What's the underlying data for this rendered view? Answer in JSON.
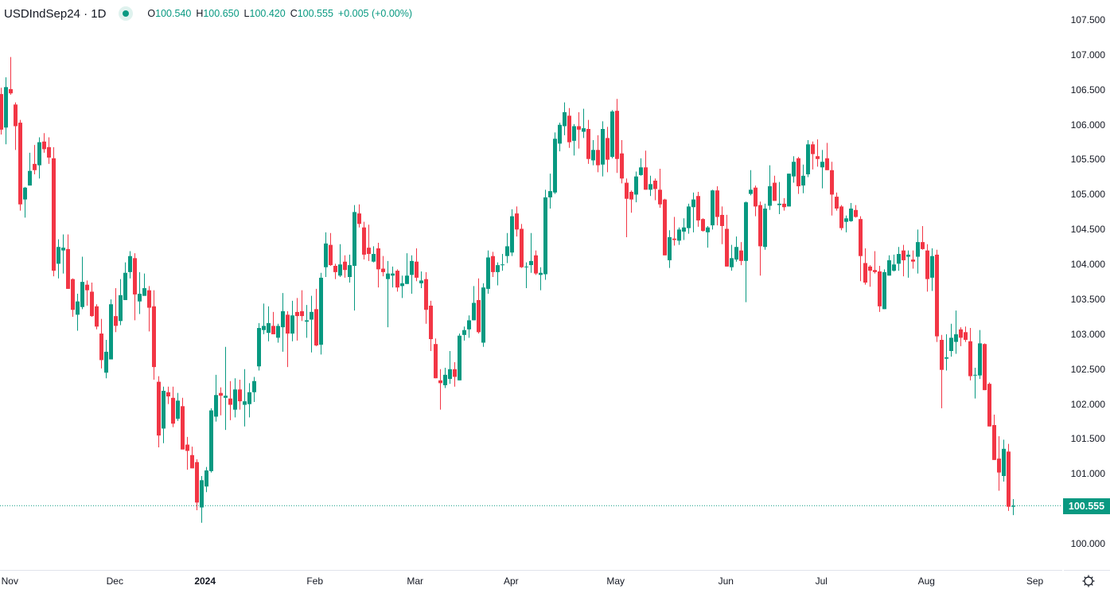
{
  "header": {
    "symbol": "USDIndSep24 · 1D",
    "open_label": "O",
    "open": "100.540",
    "high_label": "H",
    "high": "100.650",
    "low_label": "L",
    "low": "100.420",
    "close_label": "C",
    "close": "100.555",
    "change": "+0.005 (+0.00%)"
  },
  "last_price_label": "100.555",
  "colors": {
    "up": "#089981",
    "down": "#F23645",
    "last_price_line": "#089981"
  },
  "icons": {
    "status": "market-status-dot-icon",
    "settings": "gear-icon"
  },
  "chart_data": {
    "type": "candlestick",
    "title": "",
    "symbol": "USDIndSep24",
    "interval": "1D",
    "ylim": [
      99.8,
      107.6
    ],
    "grid": false,
    "y_ticks": [
      "107.500",
      "107.000",
      "106.500",
      "106.000",
      "105.500",
      "105.000",
      "104.500",
      "104.000",
      "103.500",
      "103.000",
      "102.500",
      "102.000",
      "101.500",
      "101.000",
      "100.000"
    ],
    "x_ticks": [
      {
        "label": "Nov",
        "bar": 1.8
      },
      {
        "label": "Dec",
        "bar": 23.8
      },
      {
        "label": "2024",
        "bar": 42.7,
        "bold": true
      },
      {
        "label": "Feb",
        "bar": 65.7
      },
      {
        "label": "Mar",
        "bar": 86.7
      },
      {
        "label": "Apr",
        "bar": 106.8
      },
      {
        "label": "May",
        "bar": 128.7
      },
      {
        "label": "Jun",
        "bar": 151.8
      },
      {
        "label": "Jul",
        "bar": 171.8
      },
      {
        "label": "Aug",
        "bar": 193.8
      },
      {
        "label": "Sep",
        "bar": 216.5
      }
    ],
    "last_price": 100.555,
    "ohlc_fields": [
      "open",
      "high",
      "low",
      "close"
    ],
    "candles": [
      [
        106.45,
        106.54,
        105.87,
        105.94
      ],
      [
        105.97,
        106.69,
        105.73,
        106.55
      ],
      [
        106.52,
        106.98,
        106.44,
        106.46
      ],
      [
        106.3,
        106.33,
        105.65,
        105.99
      ],
      [
        106.04,
        106.08,
        104.78,
        104.87
      ],
      [
        104.94,
        105.12,
        104.68,
        105.11
      ],
      [
        105.14,
        105.61,
        105.14,
        105.35
      ],
      [
        105.45,
        105.72,
        105.3,
        105.36
      ],
      [
        105.43,
        105.83,
        105.24,
        105.76
      ],
      [
        105.77,
        105.89,
        105.61,
        105.66
      ],
      [
        105.69,
        105.83,
        105.45,
        105.54
      ],
      [
        105.53,
        105.69,
        103.84,
        103.92
      ],
      [
        104.02,
        104.37,
        103.81,
        104.26
      ],
      [
        104.21,
        104.44,
        103.88,
        104.25
      ],
      [
        104.23,
        104.44,
        103.66,
        103.66
      ],
      [
        103.8,
        103.81,
        103.26,
        103.36
      ],
      [
        103.29,
        103.59,
        103.06,
        103.48
      ],
      [
        103.4,
        104.12,
        103.37,
        103.76
      ],
      [
        103.72,
        103.78,
        103.42,
        103.64
      ],
      [
        103.62,
        103.75,
        103.26,
        103.27
      ],
      [
        103.41,
        103.44,
        103.08,
        103.12
      ],
      [
        103.02,
        103.23,
        102.52,
        102.64
      ],
      [
        102.46,
        102.93,
        102.38,
        102.76
      ],
      [
        102.65,
        103.51,
        102.65,
        103.44
      ],
      [
        103.27,
        103.67,
        103.04,
        103.13
      ],
      [
        103.2,
        103.8,
        103.14,
        103.57
      ],
      [
        103.5,
        104.04,
        103.5,
        103.89
      ],
      [
        103.9,
        104.2,
        103.81,
        104.13
      ],
      [
        104.1,
        104.17,
        103.21,
        103.58
      ],
      [
        103.48,
        103.9,
        103.3,
        103.59
      ],
      [
        103.56,
        103.88,
        103.56,
        103.67
      ],
      [
        103.64,
        103.7,
        103.05,
        103.39
      ],
      [
        103.41,
        103.64,
        102.36,
        102.54
      ],
      [
        102.33,
        102.41,
        101.39,
        101.56
      ],
      [
        101.66,
        102.26,
        101.45,
        102.2
      ],
      [
        102.18,
        102.26,
        102.01,
        102.12
      ],
      [
        102.1,
        102.26,
        101.68,
        101.73
      ],
      [
        101.8,
        102.17,
        101.77,
        102.06
      ],
      [
        101.98,
        102.1,
        101.36,
        101.36
      ],
      [
        101.43,
        101.54,
        101.07,
        101.34
      ],
      [
        101.28,
        101.4,
        101.09,
        101.09
      ],
      [
        101.18,
        101.22,
        100.49,
        100.6
      ],
      [
        100.53,
        100.98,
        100.31,
        100.92
      ],
      [
        100.83,
        101.11,
        100.75,
        101.06
      ],
      [
        101.05,
        101.95,
        101.03,
        101.92
      ],
      [
        101.83,
        102.43,
        101.76,
        102.14
      ],
      [
        102.17,
        102.25,
        101.85,
        102.13
      ],
      [
        102.1,
        102.83,
        101.64,
        102.13
      ],
      [
        102.09,
        102.34,
        101.78,
        102.0
      ],
      [
        101.93,
        102.38,
        101.82,
        102.22
      ],
      [
        102.22,
        102.36,
        101.93,
        102.05
      ],
      [
        102.0,
        102.51,
        101.69,
        102.05
      ],
      [
        102.01,
        102.31,
        101.82,
        102.18
      ],
      [
        102.18,
        102.4,
        102.04,
        102.34
      ],
      [
        102.55,
        103.17,
        102.49,
        103.1
      ],
      [
        103.07,
        103.45,
        103.01,
        103.13
      ],
      [
        103.03,
        103.41,
        102.91,
        103.17
      ],
      [
        103.13,
        103.33,
        103.01,
        103.01
      ],
      [
        102.96,
        103.16,
        102.89,
        103.13
      ],
      [
        103.11,
        103.6,
        102.76,
        103.34
      ],
      [
        103.29,
        103.34,
        102.54,
        103.02
      ],
      [
        103.02,
        103.49,
        102.91,
        103.28
      ],
      [
        103.33,
        103.53,
        102.92,
        103.27
      ],
      [
        103.34,
        103.64,
        103.2,
        103.27
      ],
      [
        103.19,
        103.43,
        102.96,
        103.21
      ],
      [
        103.22,
        103.56,
        102.75,
        103.33
      ],
      [
        103.37,
        103.66,
        102.84,
        102.85
      ],
      [
        102.86,
        103.89,
        102.72,
        103.82
      ],
      [
        103.97,
        104.47,
        103.83,
        104.31
      ],
      [
        104.29,
        104.46,
        103.99,
        104.0
      ],
      [
        103.99,
        104.02,
        103.8,
        103.9
      ],
      [
        103.85,
        104.3,
        103.83,
        104.01
      ],
      [
        104.05,
        104.14,
        103.82,
        103.93
      ],
      [
        103.83,
        104.15,
        103.75,
        104.0
      ],
      [
        103.99,
        104.86,
        103.35,
        104.76
      ],
      [
        104.74,
        104.87,
        104.54,
        104.59
      ],
      [
        104.54,
        104.62,
        104.08,
        104.15
      ],
      [
        104.25,
        104.58,
        104.06,
        104.16
      ],
      [
        104.05,
        104.27,
        104.04,
        104.16
      ],
      [
        104.24,
        104.32,
        103.68,
        103.94
      ],
      [
        103.95,
        104.13,
        103.84,
        103.9
      ],
      [
        103.8,
        104.06,
        103.11,
        103.88
      ],
      [
        103.85,
        103.98,
        103.68,
        103.88
      ],
      [
        103.92,
        103.94,
        103.62,
        103.68
      ],
      [
        103.7,
        103.85,
        103.53,
        103.74
      ],
      [
        103.73,
        104.17,
        103.73,
        103.85
      ],
      [
        103.86,
        104.14,
        103.59,
        104.06
      ],
      [
        104.05,
        104.24,
        103.77,
        103.82
      ],
      [
        103.74,
        103.91,
        103.67,
        103.78
      ],
      [
        103.8,
        103.9,
        103.16,
        103.36
      ],
      [
        103.42,
        103.49,
        102.77,
        102.94
      ],
      [
        102.87,
        102.95,
        102.38,
        102.38
      ],
      [
        102.35,
        102.51,
        101.93,
        102.31
      ],
      [
        102.28,
        102.53,
        102.24,
        102.43
      ],
      [
        102.37,
        102.77,
        102.3,
        102.51
      ],
      [
        102.51,
        102.61,
        102.26,
        102.4
      ],
      [
        102.35,
        103.02,
        102.35,
        102.99
      ],
      [
        103.0,
        103.12,
        102.92,
        103.07
      ],
      [
        103.08,
        103.28,
        102.96,
        103.21
      ],
      [
        103.21,
        103.7,
        103.21,
        103.46
      ],
      [
        103.5,
        103.81,
        103.02,
        103.04
      ],
      [
        102.89,
        103.74,
        102.83,
        103.68
      ],
      [
        103.66,
        104.21,
        103.59,
        104.11
      ],
      [
        104.13,
        104.19,
        103.83,
        103.9
      ],
      [
        103.9,
        104.04,
        103.71,
        104.0
      ],
      [
        104.0,
        104.16,
        103.92,
        104.01
      ],
      [
        104.13,
        104.46,
        104.03,
        104.27
      ],
      [
        104.18,
        104.8,
        104.13,
        104.7
      ],
      [
        104.74,
        104.84,
        104.41,
        104.51
      ],
      [
        104.52,
        104.59,
        103.96,
        103.97
      ],
      [
        103.97,
        104.04,
        103.67,
        103.98
      ],
      [
        104.0,
        104.46,
        103.89,
        104.06
      ],
      [
        104.14,
        104.21,
        103.86,
        103.88
      ],
      [
        103.86,
        103.97,
        103.64,
        103.89
      ],
      [
        103.87,
        105.08,
        103.79,
        104.97
      ],
      [
        104.97,
        105.31,
        104.81,
        105.06
      ],
      [
        105.04,
        105.9,
        105.02,
        105.81
      ],
      [
        105.74,
        106.04,
        105.63,
        106.01
      ],
      [
        105.99,
        106.33,
        105.86,
        106.19
      ],
      [
        106.14,
        106.25,
        105.68,
        105.76
      ],
      [
        105.78,
        106.02,
        105.57,
        105.99
      ],
      [
        105.99,
        106.19,
        105.67,
        105.94
      ],
      [
        105.91,
        106.24,
        105.82,
        105.96
      ],
      [
        105.95,
        106.08,
        105.45,
        105.52
      ],
      [
        105.5,
        105.79,
        105.43,
        105.65
      ],
      [
        105.65,
        105.86,
        105.33,
        105.43
      ],
      [
        105.44,
        106.06,
        105.27,
        105.95
      ],
      [
        105.82,
        105.98,
        105.33,
        105.51
      ],
      [
        105.55,
        106.22,
        105.53,
        106.2
      ],
      [
        106.21,
        106.38,
        105.32,
        105.52
      ],
      [
        105.6,
        105.79,
        105.17,
        105.24
      ],
      [
        105.18,
        105.24,
        104.4,
        104.95
      ],
      [
        105.05,
        105.07,
        104.75,
        104.94
      ],
      [
        105.01,
        105.34,
        104.9,
        105.27
      ],
      [
        105.29,
        105.53,
        105.28,
        105.4
      ],
      [
        105.4,
        105.64,
        105.08,
        105.08
      ],
      [
        105.08,
        105.28,
        104.99,
        105.16
      ],
      [
        105.21,
        105.24,
        104.93,
        105.09
      ],
      [
        105.08,
        105.38,
        104.82,
        104.87
      ],
      [
        104.94,
        104.95,
        104.14,
        104.14
      ],
      [
        104.07,
        104.5,
        103.96,
        104.4
      ],
      [
        104.38,
        104.69,
        104.28,
        104.36
      ],
      [
        104.35,
        104.54,
        104.29,
        104.51
      ],
      [
        104.48,
        104.67,
        104.36,
        104.54
      ],
      [
        104.53,
        104.88,
        104.45,
        104.84
      ],
      [
        104.83,
        105.04,
        104.47,
        104.94
      ],
      [
        104.99,
        105.05,
        104.55,
        104.64
      ],
      [
        104.66,
        104.67,
        104.48,
        104.49
      ],
      [
        104.47,
        104.56,
        104.25,
        104.54
      ],
      [
        104.57,
        105.08,
        104.51,
        105.07
      ],
      [
        105.07,
        105.13,
        104.57,
        104.69
      ],
      [
        104.72,
        104.84,
        104.3,
        104.56
      ],
      [
        104.52,
        104.72,
        103.98,
        103.98
      ],
      [
        103.97,
        104.29,
        103.92,
        104.1
      ],
      [
        104.08,
        104.41,
        104.05,
        104.26
      ],
      [
        104.21,
        104.33,
        104.0,
        104.06
      ],
      [
        104.06,
        104.91,
        103.47,
        104.9
      ],
      [
        105.02,
        105.36,
        105.0,
        105.08
      ],
      [
        105.11,
        105.14,
        104.7,
        104.84
      ],
      [
        104.86,
        104.91,
        103.85,
        104.27
      ],
      [
        104.26,
        104.88,
        104.22,
        104.81
      ],
      [
        104.85,
        105.43,
        104.79,
        105.13
      ],
      [
        105.18,
        105.28,
        104.92,
        104.92
      ],
      [
        104.86,
        105.19,
        104.73,
        104.88
      ],
      [
        104.88,
        104.96,
        104.78,
        104.83
      ],
      [
        104.84,
        105.31,
        104.84,
        105.31
      ],
      [
        105.27,
        105.56,
        105.18,
        105.48
      ],
      [
        105.53,
        105.55,
        105.02,
        105.13
      ],
      [
        105.14,
        105.44,
        105.03,
        105.28
      ],
      [
        105.3,
        105.79,
        105.26,
        105.73
      ],
      [
        105.73,
        105.77,
        105.37,
        105.59
      ],
      [
        105.56,
        105.8,
        105.41,
        105.52
      ],
      [
        105.4,
        105.65,
        105.1,
        105.48
      ],
      [
        105.53,
        105.75,
        105.36,
        105.36
      ],
      [
        105.36,
        105.48,
        104.71,
        105.01
      ],
      [
        104.98,
        105.04,
        104.78,
        104.81
      ],
      [
        104.84,
        104.86,
        104.5,
        104.53
      ],
      [
        104.62,
        104.71,
        104.47,
        104.67
      ],
      [
        104.63,
        104.89,
        104.62,
        104.81
      ],
      [
        104.79,
        104.86,
        104.68,
        104.69
      ],
      [
        104.66,
        104.7,
        103.77,
        104.13
      ],
      [
        104.03,
        104.24,
        103.72,
        103.75
      ],
      [
        103.98,
        104.0,
        103.69,
        103.92
      ],
      [
        103.93,
        104.2,
        103.88,
        103.9
      ],
      [
        103.91,
        103.99,
        103.33,
        103.41
      ],
      [
        103.37,
        103.94,
        103.37,
        103.9
      ],
      [
        103.85,
        104.14,
        103.85,
        104.07
      ],
      [
        103.92,
        104.15,
        103.91,
        104.01
      ],
      [
        104.02,
        104.26,
        103.92,
        104.16
      ],
      [
        104.21,
        104.29,
        103.84,
        104.07
      ],
      [
        104.12,
        104.21,
        103.82,
        104.15
      ],
      [
        104.08,
        104.21,
        103.95,
        104.05
      ],
      [
        104.12,
        104.51,
        103.88,
        104.33
      ],
      [
        104.33,
        104.56,
        104.22,
        104.23
      ],
      [
        104.21,
        104.3,
        103.62,
        103.8
      ],
      [
        103.82,
        104.24,
        103.63,
        104.13
      ],
      [
        104.15,
        104.22,
        102.9,
        102.98
      ],
      [
        102.93,
        103.0,
        101.95,
        102.5
      ],
      [
        102.66,
        103.01,
        102.49,
        102.68
      ],
      [
        102.77,
        103.16,
        102.69,
        102.96
      ],
      [
        102.9,
        103.35,
        102.73,
        103.01
      ],
      [
        103.08,
        103.11,
        102.84,
        102.96
      ],
      [
        103.04,
        103.12,
        102.9,
        102.93
      ],
      [
        102.91,
        103.1,
        102.35,
        102.41
      ],
      [
        102.42,
        102.53,
        102.09,
        102.43
      ],
      [
        102.42,
        103.07,
        102.37,
        102.88
      ],
      [
        102.87,
        102.88,
        102.21,
        102.21
      ],
      [
        102.3,
        102.32,
        101.69,
        101.69
      ],
      [
        101.71,
        101.86,
        101.21,
        101.21
      ],
      [
        101.23,
        101.55,
        100.77,
        101.03
      ],
      [
        100.98,
        101.5,
        100.9,
        101.37
      ],
      [
        101.33,
        101.44,
        100.48,
        100.54
      ],
      [
        100.54,
        100.65,
        100.42,
        100.555
      ]
    ]
  }
}
